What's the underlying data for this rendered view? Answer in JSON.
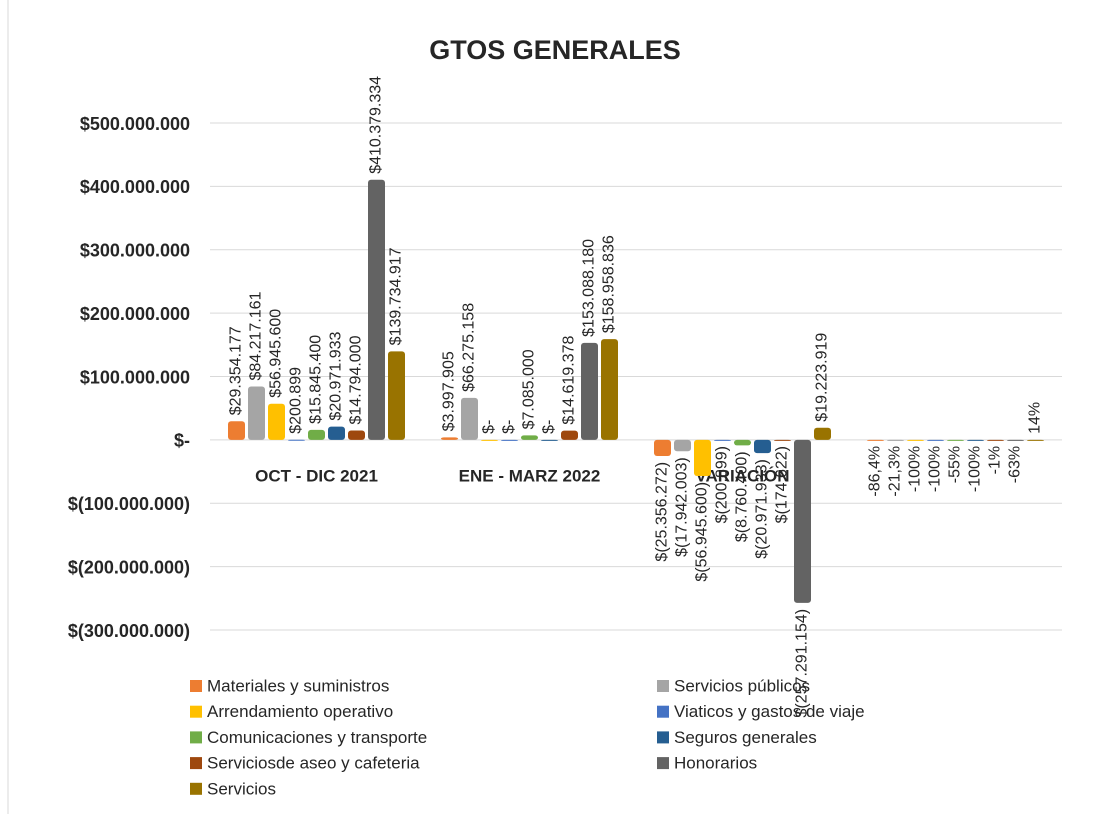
{
  "chart_data": {
    "type": "bar",
    "title": "GTOS GENERALES",
    "categories": [
      "OCT - DIC 2021",
      "ENE - MARZ 2022",
      "VARIACIÓN",
      null
    ],
    "series": [
      {
        "name": "Materiales y suministros",
        "color": "#ed7d31",
        "values": [
          29354177,
          3997905,
          -25356272,
          -0.864
        ],
        "value_labels": [
          "$29.354.177",
          "$3.997.905",
          "$(25.356.272)",
          "-86,4%"
        ]
      },
      {
        "name": "Servicios públicos",
        "color": "#a5a5a5",
        "values": [
          84217161,
          66275158,
          -17942003,
          -0.213
        ],
        "value_labels": [
          "$84.217.161",
          "$66.275.158",
          "$(17.942.003)",
          "-21,3%"
        ]
      },
      {
        "name": "Arrendamiento operativo",
        "color": "#ffc000",
        "values": [
          56945600,
          0,
          -56945600,
          -1
        ],
        "value_labels": [
          "$56.945.600",
          "$-",
          "$(56.945.600)",
          "-100%"
        ]
      },
      {
        "name": "Viaticos y gastos de viaje",
        "color": "#4472c4",
        "values": [
          200899,
          0,
          -200899,
          -1
        ],
        "value_labels": [
          "$200.899",
          "$-",
          "$(200.899)",
          "-100%"
        ]
      },
      {
        "name": "Comunicaciones y transporte",
        "color": "#70ad47",
        "values": [
          15845400,
          7085000,
          -8760400,
          -0.55
        ],
        "value_labels": [
          "$15.845.400",
          "$7.085.000",
          "$(8.760.400)",
          "-55%"
        ]
      },
      {
        "name": "Seguros generales",
        "color": "#255e91",
        "values": [
          20971933,
          0,
          -20971933,
          -1
        ],
        "value_labels": [
          "$20.971.933",
          "$-",
          "$(20.971.933)",
          "-100%"
        ]
      },
      {
        "name": "Serviciosde aseo y cafeteria",
        "color": "#9e480e",
        "values": [
          14794000,
          14619378,
          -174622,
          -0.01
        ],
        "value_labels": [
          "$14.794.000",
          "$14.619.378",
          "$(174.622)",
          "-1%"
        ]
      },
      {
        "name": "Honorarios",
        "color": "#636363",
        "values": [
          410379334,
          153088180,
          -257291154,
          -0.63
        ],
        "value_labels": [
          "$410.379.334",
          "$153.088.180",
          "$(257.291.154)",
          "-63%"
        ]
      },
      {
        "name": "Servicios",
        "color": "#997300",
        "values": [
          139734917,
          158958836,
          19223919,
          0.14
        ],
        "value_labels": [
          "$139.734.917",
          "$158.958.836",
          "$19.223.919",
          "14%"
        ]
      }
    ],
    "ylim": [
      -300000000,
      500000000
    ],
    "yticks": [
      {
        "value": -300000000,
        "label": "$(300.000.000)"
      },
      {
        "value": -200000000,
        "label": "$(200.000.000)"
      },
      {
        "value": -100000000,
        "label": "$(100.000.000)"
      },
      {
        "value": 0,
        "label": "$-"
      },
      {
        "value": 100000000,
        "label": "$100.000.000"
      },
      {
        "value": 200000000,
        "label": "$200.000.000"
      },
      {
        "value": 300000000,
        "label": "$300.000.000"
      },
      {
        "value": 400000000,
        "label": "$400.000.000"
      },
      {
        "value": 500000000,
        "label": "$500.000.000"
      }
    ],
    "grid": true,
    "legend": "bottom"
  }
}
